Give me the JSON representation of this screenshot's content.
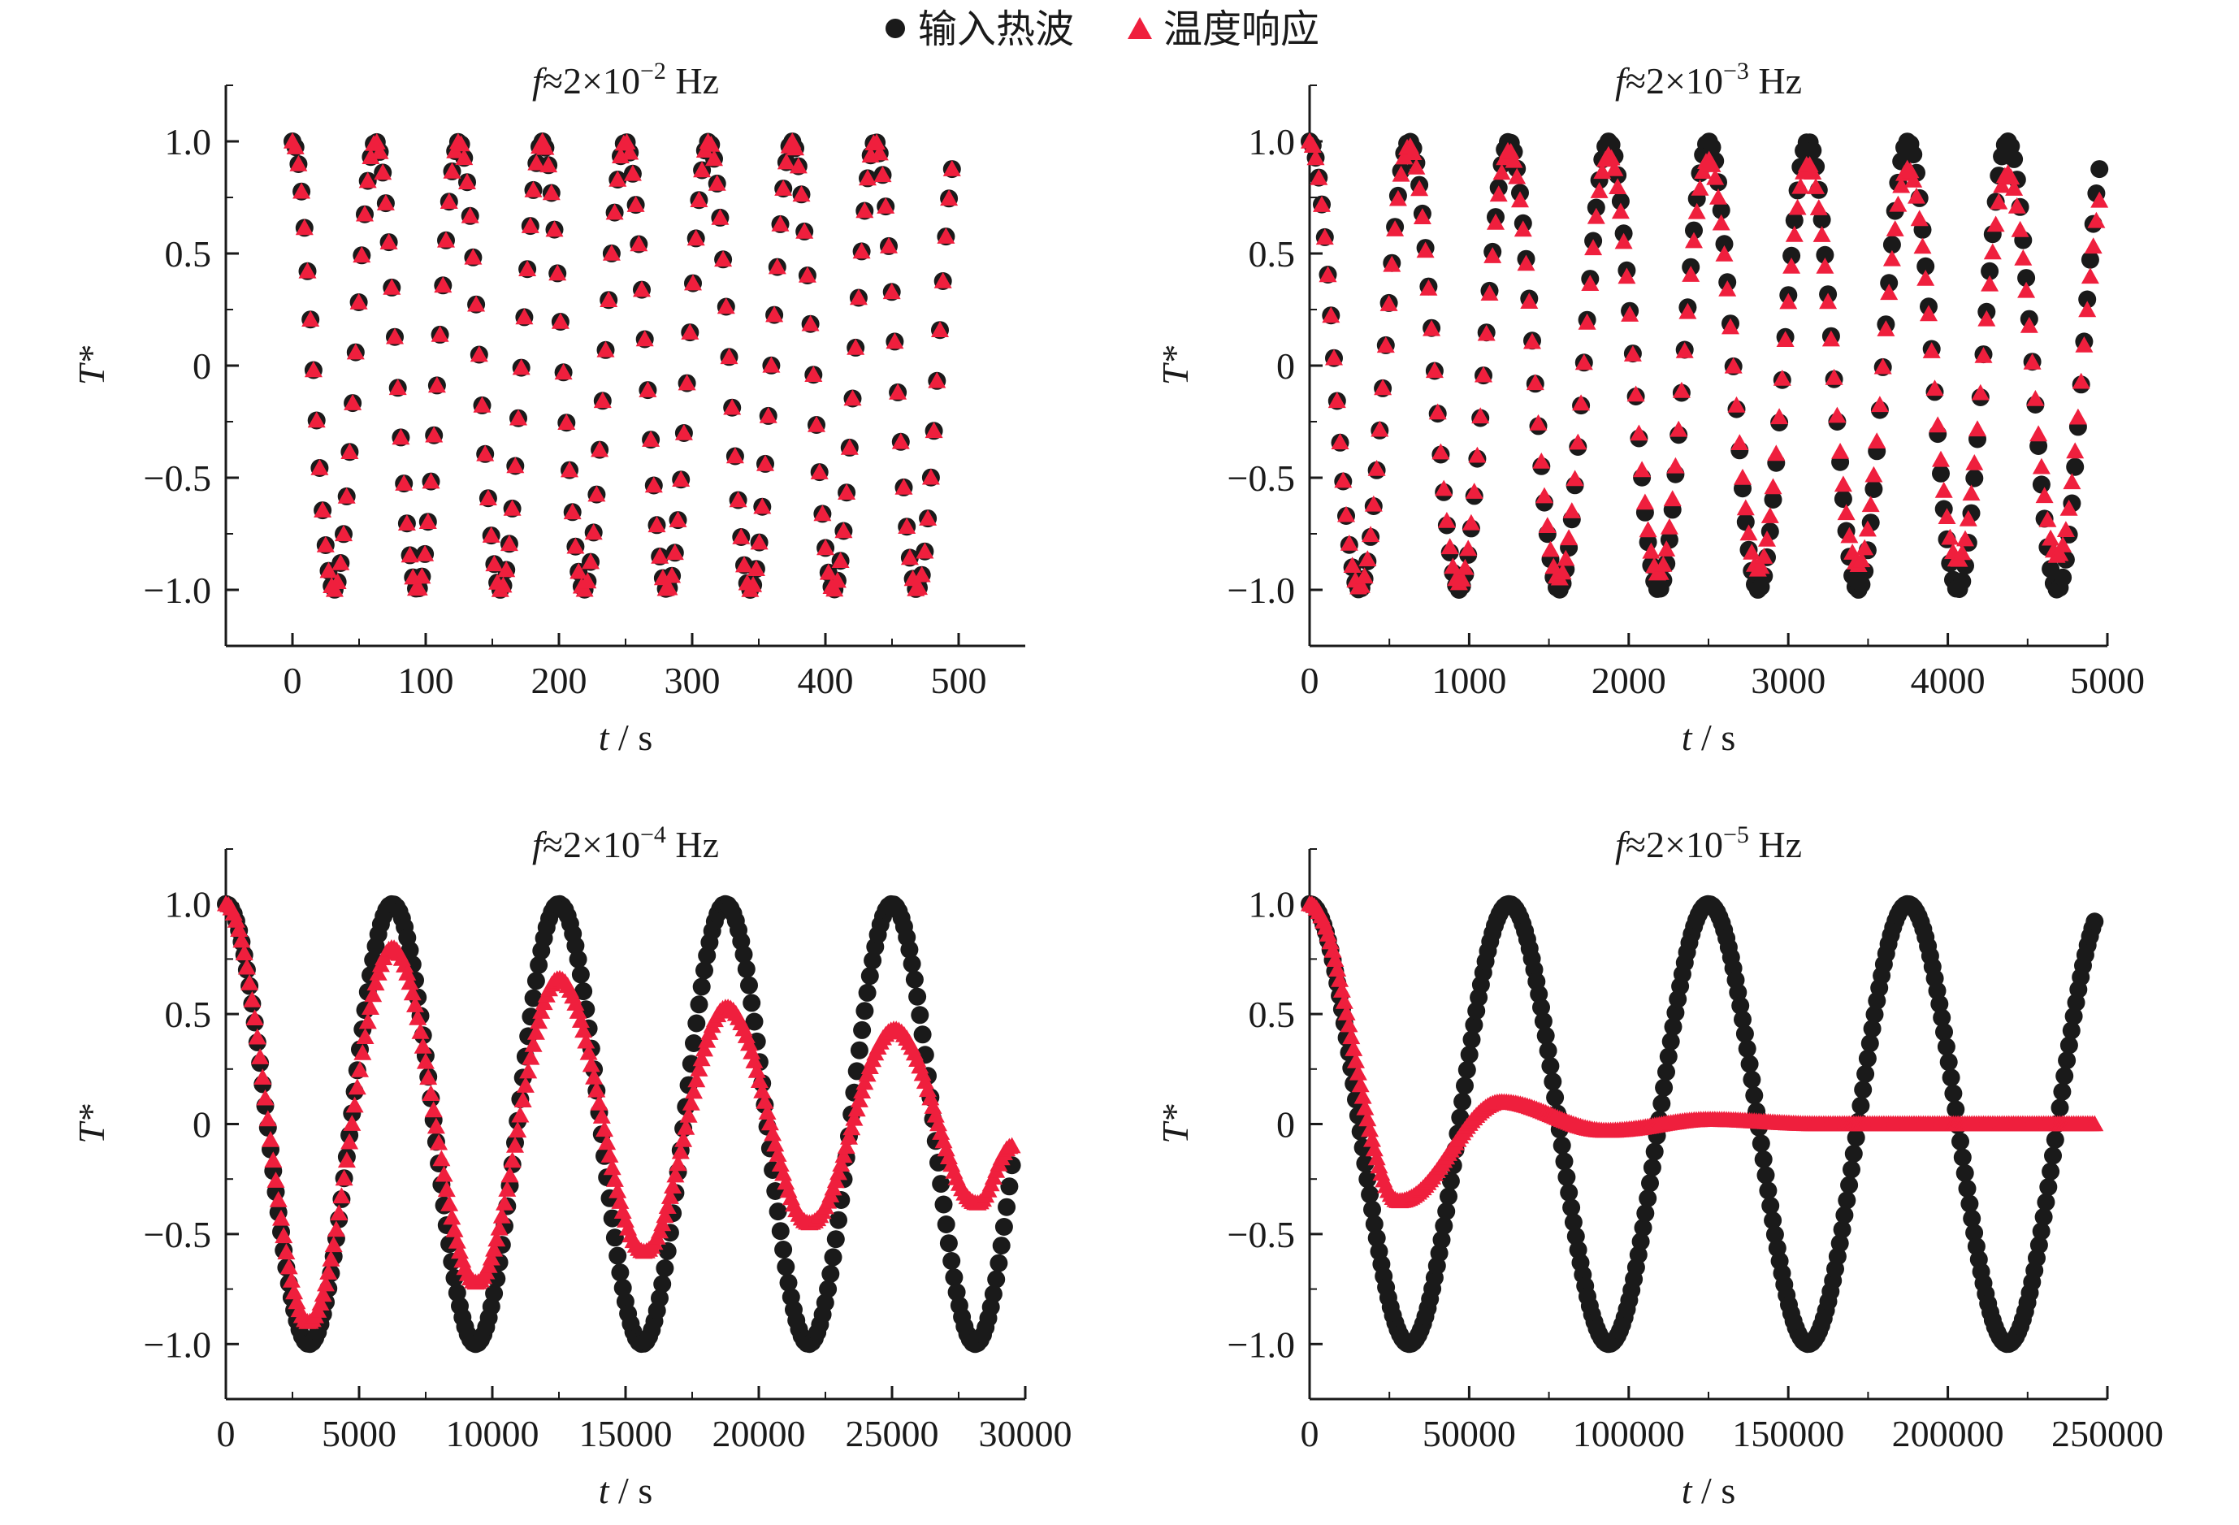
{
  "legend": {
    "items": [
      {
        "label": "输入热波",
        "marker": "circle",
        "color": "#1a1a1a"
      },
      {
        "label": "温度响应",
        "marker": "triangle",
        "color": "#ef1f3d"
      }
    ],
    "placement": "top-center"
  },
  "chart_data": [
    {
      "type": "scatter",
      "title_prefix": "f",
      "title_mid": "≈2×10",
      "title_exp": "−2",
      "title_unit": " Hz",
      "xlabel_var": "t",
      "xlabel_unit": " / s",
      "ylabel": "T*",
      "xlim": [
        -50,
        550
      ],
      "ylim": [
        -1.25,
        1.25
      ],
      "xticks": [
        0,
        100,
        200,
        300,
        400,
        500
      ],
      "xtick_labels": [
        "0",
        "100",
        "200",
        "300",
        "400",
        "500"
      ],
      "yticks": [
        1.0,
        0.5,
        0,
        -0.5,
        -1.0
      ],
      "ytick_labels": [
        "1.0",
        "0.5",
        "0",
        "−0.5",
        "−1.0"
      ],
      "series": [
        {
          "name": "输入热波",
          "marker": "circle",
          "color": "#1a1a1a",
          "function": "cos",
          "amplitude": 1.0,
          "frequency_hz": 0.016,
          "x_range": [
            0,
            495
          ],
          "points": 220
        },
        {
          "name": "温度响应",
          "marker": "triangle",
          "color": "#ef1f3d",
          "function": "cos",
          "amplitude": 1.0,
          "frequency_hz": 0.016,
          "x_range": [
            0,
            495
          ],
          "points": 220
        }
      ]
    },
    {
      "type": "scatter",
      "title_prefix": "f",
      "title_mid": "≈2×10",
      "title_exp": "−3",
      "title_unit": " Hz",
      "xlabel_var": "t",
      "xlabel_unit": " / s",
      "ylabel": "T*",
      "xlim": [
        0,
        5000
      ],
      "ylim": [
        -1.25,
        1.25
      ],
      "xticks": [
        0,
        1000,
        2000,
        3000,
        4000,
        5000
      ],
      "xtick_labels": [
        "0",
        "1000",
        "2000",
        "3000",
        "4000",
        "5000"
      ],
      "yticks": [
        1.0,
        0.5,
        0,
        -0.5,
        -1.0
      ],
      "ytick_labels": [
        "1.0",
        "0.5",
        "0",
        "−0.5",
        "−1.0"
      ],
      "series": [
        {
          "name": "输入热波",
          "marker": "circle",
          "color": "#1a1a1a",
          "function": "cos",
          "amplitude": 1.0,
          "frequency_hz": 0.0016,
          "x_range": [
            0,
            4950
          ],
          "points": 260
        },
        {
          "name": "温度响应",
          "marker": "triangle",
          "color": "#ef1f3d",
          "function": "decaying_cos",
          "amplitude": 1.0,
          "final_amplitude": 0.84,
          "frequency_hz": 0.0016,
          "x_range": [
            0,
            4950
          ],
          "points": 260
        }
      ]
    },
    {
      "type": "scatter",
      "title_prefix": "f",
      "title_mid": "≈2×10",
      "title_exp": "−4",
      "title_unit": " Hz",
      "xlabel_var": "t",
      "xlabel_unit": " / s",
      "ylabel": "T*",
      "xlim": [
        0,
        30000
      ],
      "ylim": [
        -1.25,
        1.25
      ],
      "xticks": [
        0,
        5000,
        10000,
        15000,
        20000,
        25000,
        30000
      ],
      "xtick_labels": [
        "0",
        "5000",
        "10000",
        "15000",
        "20000",
        "25000",
        "30000"
      ],
      "yticks": [
        1.0,
        0.5,
        0,
        -0.5,
        -1.0
      ],
      "ytick_labels": [
        "1.0",
        "0.5",
        "0",
        "−0.5",
        "−1.0"
      ],
      "series": [
        {
          "name": "输入热波",
          "marker": "circle",
          "color": "#1a1a1a",
          "function": "cos",
          "amplitude": 1.0,
          "frequency_hz": 0.00016,
          "x_range": [
            0,
            29500
          ],
          "points": 300
        },
        {
          "name": "温度响应",
          "marker": "triangle",
          "color": "#ef1f3d",
          "function": "table",
          "x": [
            0,
            3100,
            6250,
            9400,
            12500,
            15700,
            18800,
            21900,
            25100,
            28200,
            29500
          ],
          "y": [
            1.0,
            -0.9,
            0.8,
            -0.72,
            0.66,
            -0.58,
            0.53,
            -0.45,
            0.43,
            -0.36,
            -0.1
          ],
          "points": 300
        }
      ]
    },
    {
      "type": "scatter",
      "title_prefix": "f",
      "title_mid": "≈2×10",
      "title_exp": "−5",
      "title_unit": " Hz",
      "xlabel_var": "t",
      "xlabel_unit": " / s",
      "ylabel": "T*",
      "xlim": [
        0,
        250000
      ],
      "ylim": [
        -1.25,
        1.25
      ],
      "xticks": [
        0,
        50000,
        100000,
        150000,
        200000,
        250000
      ],
      "xtick_labels": [
        "0",
        "50000",
        "100000",
        "150000",
        "200000",
        "250000"
      ],
      "yticks": [
        1.0,
        0.5,
        0,
        -0.5,
        -1.0
      ],
      "ytick_labels": [
        "1.0",
        "0.5",
        "0",
        "−0.5",
        "−1.0"
      ],
      "series": [
        {
          "name": "输入热波",
          "marker": "circle",
          "color": "#1a1a1a",
          "function": "cos",
          "amplitude": 1.0,
          "frequency_hz": 1.6e-05,
          "x_range": [
            0,
            246000
          ],
          "points": 340
        },
        {
          "name": "温度响应",
          "marker": "triangle",
          "color": "#ef1f3d",
          "function": "table",
          "x": [
            0,
            28000,
            60000,
            93000,
            125000,
            160000,
            200000,
            246000
          ],
          "y": [
            1.0,
            -0.35,
            0.1,
            -0.03,
            0.02,
            0.0,
            0.0,
            0.0
          ],
          "points": 340
        }
      ]
    }
  ]
}
